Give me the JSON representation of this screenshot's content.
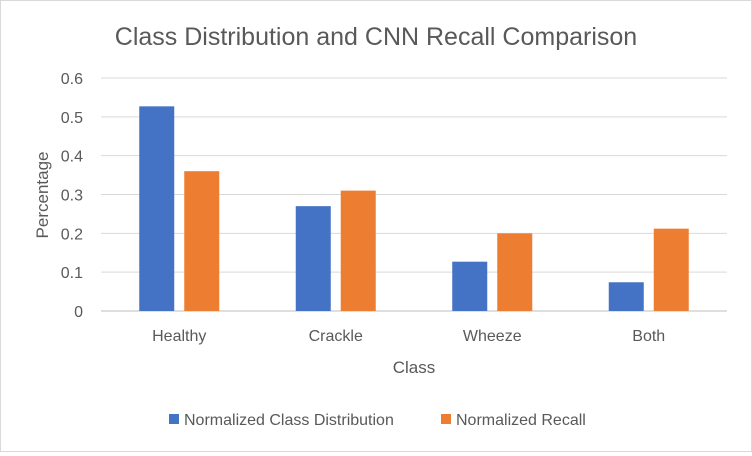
{
  "chart_data": {
    "type": "bar",
    "title": "Class Distribution and CNN Recall Comparison",
    "xlabel": "Class",
    "ylabel": "Percentage",
    "categories": [
      "Healthy",
      "Crackle",
      "Wheeze",
      "Both"
    ],
    "series": [
      {
        "name": "Normalized Class Distribution",
        "color": "#4472c4",
        "values": [
          0.527,
          0.27,
          0.127,
          0.074
        ]
      },
      {
        "name": "Normalized Recall",
        "color": "#ed7d31",
        "values": [
          0.36,
          0.31,
          0.2,
          0.212
        ]
      }
    ],
    "ylim": [
      0,
      0.6
    ],
    "yticks": [
      "0",
      "0.1",
      "0.2",
      "0.3",
      "0.4",
      "0.5",
      "0.6"
    ],
    "grid": true,
    "legend_position": "bottom"
  }
}
